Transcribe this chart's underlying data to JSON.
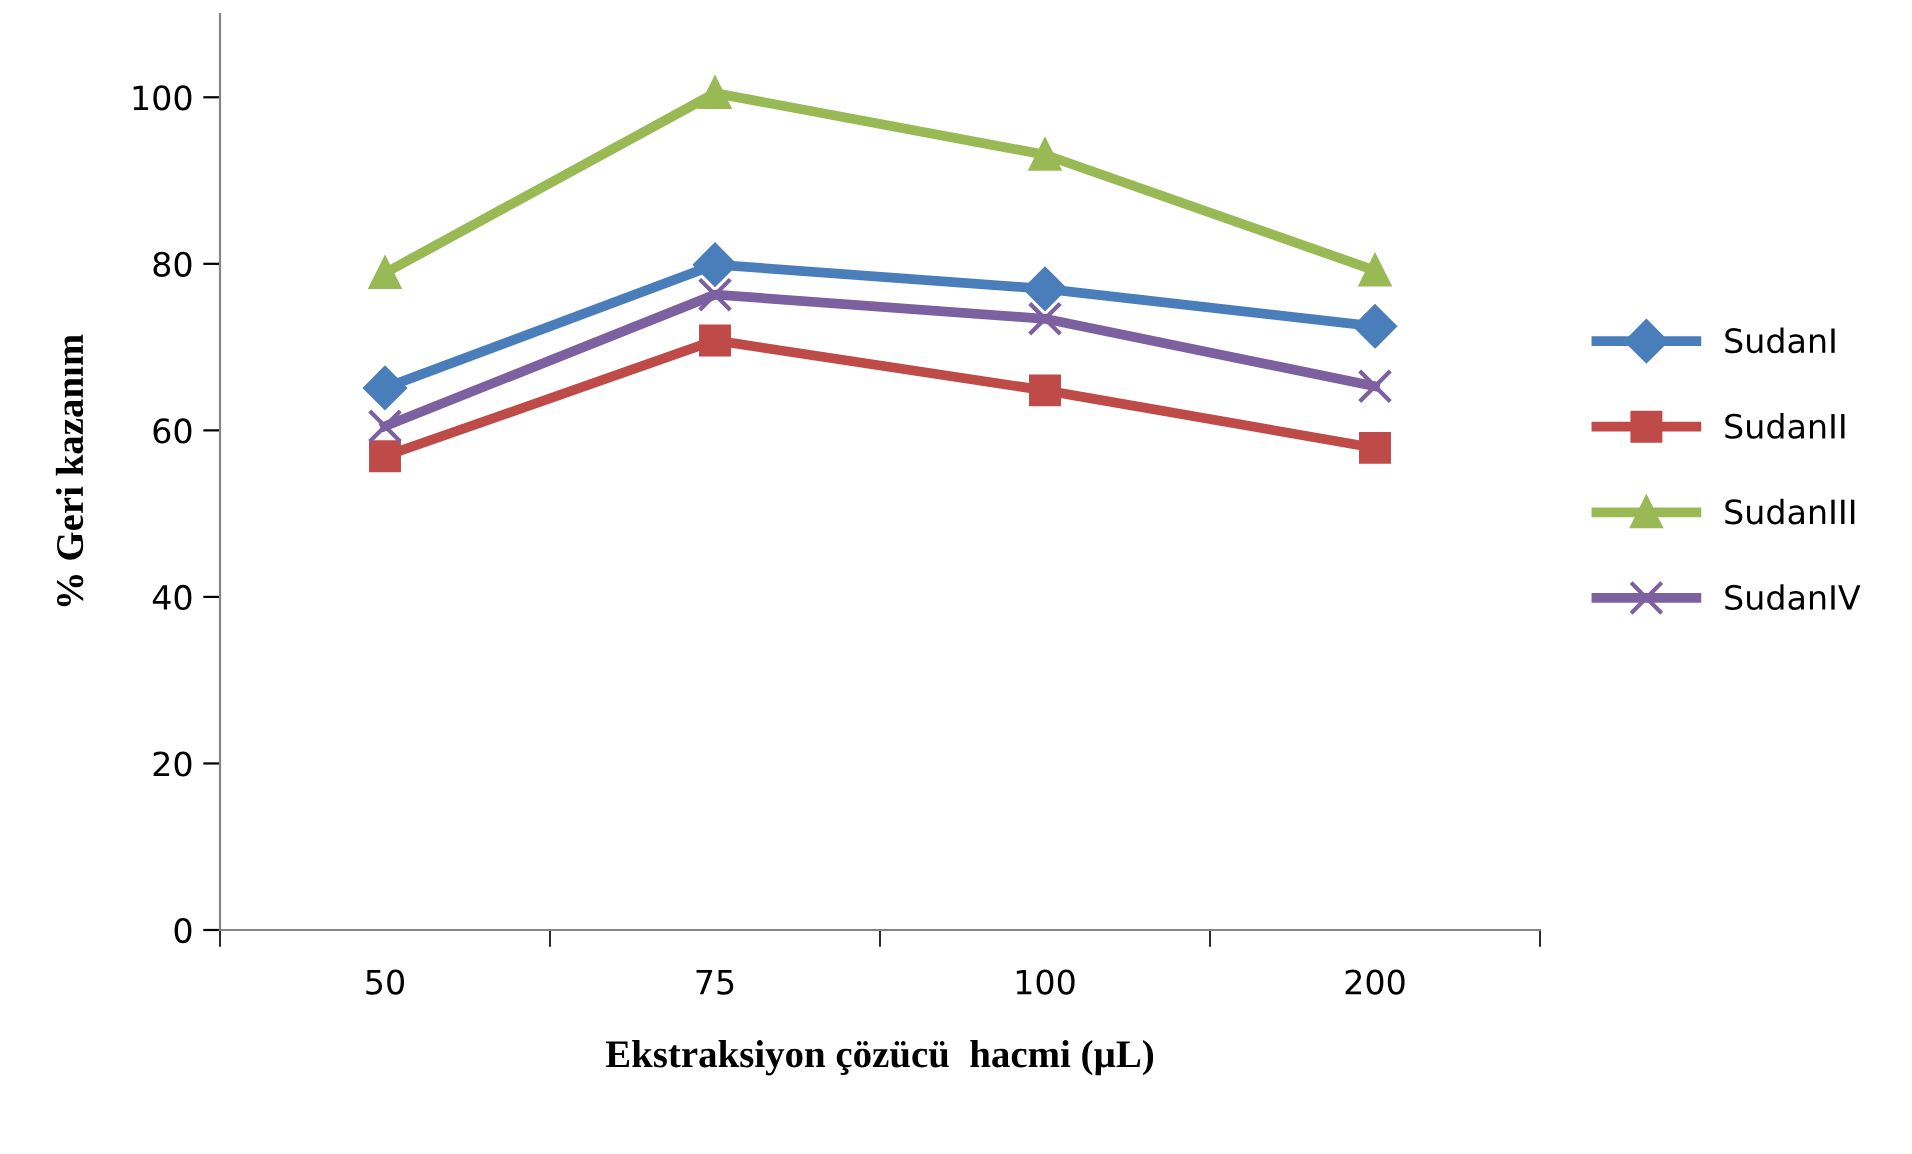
{
  "chart_data": {
    "type": "line",
    "xlabel": "Ekstraksiyon çözücü  hacmi (µL)",
    "ylabel": "% Geri kazanım",
    "categories": [
      "50",
      "75",
      "100",
      "200"
    ],
    "series": [
      {
        "name": "SudanI",
        "color": "#4a7ebb",
        "marker": "diamond",
        "values": [
          65.1,
          79.9,
          77.0,
          72.5
        ]
      },
      {
        "name": "SudanII",
        "color": "#be4b48",
        "marker": "square",
        "values": [
          56.9,
          70.8,
          64.8,
          57.9
        ]
      },
      {
        "name": "SudanIII",
        "color": "#98b954",
        "marker": "triangle",
        "values": [
          78.9,
          100.5,
          93.1,
          79.2
        ]
      },
      {
        "name": "SudanIV",
        "color": "#7d60a0",
        "marker": "cross",
        "values": [
          60.5,
          76.3,
          73.4,
          65.3
        ]
      }
    ],
    "ylim": [
      0,
      110
    ],
    "yticks": [
      0,
      20,
      40,
      60,
      80,
      100
    ],
    "grid": false,
    "legend": "right",
    "line_style": "solid"
  }
}
